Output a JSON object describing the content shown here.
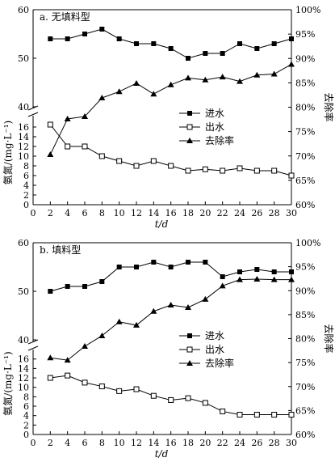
{
  "chart_data": [
    {
      "type": "line",
      "title": "a. 无填料型",
      "xlabel": "t/d",
      "ylabel_left": "氨氮/(mg·L⁻¹)",
      "ylabel_right": "去除率",
      "x": [
        2,
        4,
        6,
        8,
        10,
        12,
        14,
        16,
        18,
        20,
        22,
        24,
        26,
        28,
        30
      ],
      "x_ticks": [
        "0",
        "2",
        "4",
        "6",
        "8",
        "10",
        "12",
        "14",
        "16",
        "18",
        "20",
        "22",
        "24",
        "26",
        "28",
        "30"
      ],
      "y_left_ticks_lower": [
        "0",
        "2",
        "4",
        "6",
        "8",
        "10",
        "12",
        "14",
        "16"
      ],
      "y_left_ticks_upper": [
        "40",
        "50",
        "60"
      ],
      "y_right_ticks": [
        "60%",
        "65%",
        "70%",
        "75%",
        "80%",
        "85%",
        "90%",
        "95%",
        "100%"
      ],
      "ylim_lower": [
        0,
        17.5
      ],
      "ylim_upper": [
        40,
        60
      ],
      "ylim_right": [
        60,
        100
      ],
      "axis_break": true,
      "legend_position": "center-right",
      "series": [
        {
          "name": "进水",
          "axis": "left",
          "marker": "filled-square",
          "values": [
            54,
            54,
            55,
            56,
            54,
            53,
            53,
            52,
            50,
            51,
            51,
            53,
            52,
            53,
            54
          ]
        },
        {
          "name": "出水",
          "axis": "left",
          "marker": "open-square",
          "values": [
            16.5,
            12,
            12,
            10,
            9,
            8,
            9,
            8,
            7,
            7.3,
            7,
            7.5,
            7,
            7,
            6
          ]
        },
        {
          "name": "去除率",
          "axis": "right",
          "marker": "filled-triangle",
          "values": [
            70.3,
            77.6,
            78.1,
            81.9,
            83.2,
            84.9,
            82.7,
            84.6,
            86.0,
            85.6,
            86.2,
            85.3,
            86.6,
            86.8,
            88.8
          ]
        }
      ]
    },
    {
      "type": "line",
      "title": "b. 填料型",
      "xlabel": "t/d",
      "ylabel_left": "氨氮/(mg·L⁻¹)",
      "ylabel_right": "去除率",
      "x": [
        2,
        4,
        6,
        8,
        10,
        12,
        14,
        16,
        18,
        20,
        22,
        24,
        26,
        28,
        30
      ],
      "x_ticks": [
        "0",
        "2",
        "4",
        "6",
        "8",
        "10",
        "12",
        "14",
        "16",
        "18",
        "20",
        "22",
        "24",
        "26",
        "28",
        "30"
      ],
      "y_left_ticks_lower": [
        "0",
        "2",
        "4",
        "6",
        "8",
        "10",
        "12",
        "14",
        "16"
      ],
      "y_left_ticks_upper": [
        "40",
        "50",
        "60"
      ],
      "y_right_ticks": [
        "60%",
        "65%",
        "70%",
        "75%",
        "80%",
        "85%",
        "90%",
        "95%",
        "100%"
      ],
      "ylim_lower": [
        0,
        17.5
      ],
      "ylim_upper": [
        40,
        60
      ],
      "ylim_right": [
        60,
        100
      ],
      "axis_break": true,
      "legend_position": "center-right",
      "series": [
        {
          "name": "进水",
          "axis": "left",
          "marker": "filled-square",
          "values": [
            50,
            51,
            51,
            52,
            55,
            55,
            56,
            55,
            56,
            56,
            53,
            54,
            54.5,
            54,
            54
          ]
        },
        {
          "name": "出水",
          "axis": "left",
          "marker": "open-square",
          "values": [
            12,
            12.5,
            11,
            10.2,
            9.2,
            9.6,
            8.2,
            7.3,
            7.7,
            6.7,
            4.9,
            4.2,
            4.2,
            4.2,
            4.2
          ]
        },
        {
          "name": "去除率",
          "axis": "right",
          "marker": "filled-triangle",
          "values": [
            76.0,
            75.5,
            78.4,
            80.6,
            83.5,
            82.8,
            85.7,
            87.0,
            86.5,
            88.2,
            91.0,
            92.3,
            92.4,
            92.3,
            92.3
          ]
        }
      ]
    }
  ]
}
